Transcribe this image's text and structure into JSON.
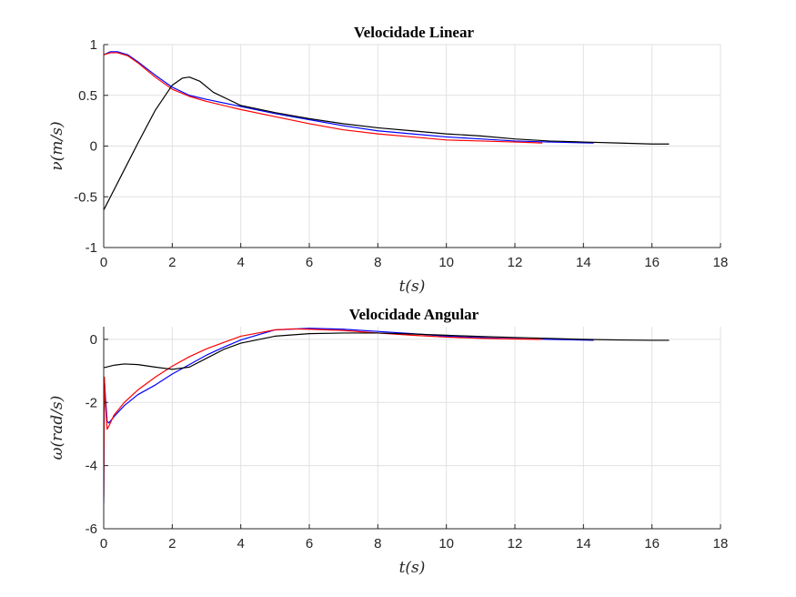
{
  "chart_data": [
    {
      "type": "line",
      "title": "Velocidade Linear",
      "xlabel": "t(s)",
      "ylabel": "ν(m/s)",
      "xlim": [
        0,
        18
      ],
      "ylim": [
        -1,
        1
      ],
      "xticks": [
        0,
        2,
        4,
        6,
        8,
        10,
        12,
        14,
        16,
        18
      ],
      "yticks": [
        -1,
        -0.5,
        0,
        0.5,
        1
      ],
      "grid": true,
      "series": [
        {
          "color": "#0000ff",
          "x": [
            0,
            0.2,
            0.4,
            0.7,
            1.0,
            1.5,
            2.0,
            2.5,
            3.0,
            4.0,
            5.0,
            6.0,
            7.0,
            8.0,
            9.0,
            10.0,
            11.0,
            12.0,
            13.0,
            14.3
          ],
          "y": [
            0.9,
            0.93,
            0.93,
            0.9,
            0.83,
            0.7,
            0.58,
            0.5,
            0.46,
            0.39,
            0.32,
            0.26,
            0.2,
            0.15,
            0.12,
            0.09,
            0.07,
            0.05,
            0.04,
            0.03
          ]
        },
        {
          "color": "#ff0000",
          "x": [
            0,
            0.2,
            0.4,
            0.7,
            1.0,
            1.5,
            2.0,
            2.5,
            3.0,
            4.0,
            5.0,
            6.0,
            7.0,
            8.0,
            9.0,
            10.0,
            11.0,
            12.0,
            12.8
          ],
          "y": [
            0.9,
            0.92,
            0.92,
            0.89,
            0.82,
            0.68,
            0.56,
            0.49,
            0.44,
            0.36,
            0.29,
            0.22,
            0.16,
            0.12,
            0.09,
            0.06,
            0.05,
            0.04,
            0.03
          ]
        },
        {
          "color": "#000000",
          "x": [
            0,
            0.5,
            1.0,
            1.5,
            2.0,
            2.3,
            2.5,
            2.8,
            3.2,
            4.0,
            5.0,
            6.0,
            7.0,
            8.0,
            9.0,
            10.0,
            11.0,
            12.0,
            13.0,
            14.0,
            15.0,
            16.0,
            16.5
          ],
          "y": [
            -0.63,
            -0.3,
            0.03,
            0.35,
            0.6,
            0.67,
            0.68,
            0.64,
            0.53,
            0.4,
            0.33,
            0.27,
            0.22,
            0.18,
            0.15,
            0.12,
            0.1,
            0.07,
            0.05,
            0.04,
            0.03,
            0.02,
            0.02
          ]
        }
      ]
    },
    {
      "type": "line",
      "title": "Velocidade Angular",
      "xlabel": "t(s)",
      "ylabel": "ω(rad/s)",
      "xlim": [
        0,
        18
      ],
      "ylim": [
        -6,
        0.4
      ],
      "xticks": [
        0,
        2,
        4,
        6,
        8,
        10,
        12,
        14,
        16,
        18
      ],
      "yticks": [
        -6,
        -4,
        -2,
        0
      ],
      "grid": true,
      "series": [
        {
          "color": "#0000ff",
          "x": [
            0,
            0.02,
            0.05,
            0.1,
            0.15,
            0.3,
            0.6,
            1.0,
            1.5,
            2.0,
            2.5,
            3.0,
            3.5,
            4.0,
            5.0,
            6.0,
            7.0,
            8.0,
            9.0,
            10.0,
            11.0,
            12.0,
            13.0,
            14.3
          ],
          "y": [
            -5.2,
            -1.3,
            -1.8,
            -2.6,
            -2.65,
            -2.45,
            -2.1,
            -1.75,
            -1.45,
            -1.1,
            -0.8,
            -0.5,
            -0.25,
            -0.02,
            0.3,
            0.35,
            0.32,
            0.25,
            0.18,
            0.1,
            0.05,
            0.02,
            0.0,
            -0.03
          ]
        },
        {
          "color": "#ff0000",
          "x": [
            0,
            0.02,
            0.05,
            0.1,
            0.15,
            0.3,
            0.6,
            1.0,
            1.5,
            2.0,
            2.5,
            3.0,
            3.5,
            4.0,
            5.0,
            5.5,
            6.0,
            7.0,
            8.0,
            9.0,
            10.0,
            11.0,
            12.0,
            12.8
          ],
          "y": [
            -5.0,
            -1.2,
            -2.0,
            -2.85,
            -2.75,
            -2.4,
            -2.0,
            -1.6,
            -1.2,
            -0.85,
            -0.55,
            -0.3,
            -0.1,
            0.1,
            0.3,
            0.33,
            0.32,
            0.28,
            0.2,
            0.13,
            0.07,
            0.03,
            0.01,
            0.0
          ]
        },
        {
          "color": "#000000",
          "x": [
            0,
            0.3,
            0.6,
            1.0,
            1.5,
            2.0,
            2.5,
            3.0,
            3.5,
            4.0,
            5.0,
            6.0,
            7.0,
            8.0,
            9.0,
            10.0,
            11.0,
            12.0,
            13.0,
            14.0,
            15.0,
            16.0,
            16.5
          ],
          "y": [
            -0.9,
            -0.82,
            -0.78,
            -0.8,
            -0.88,
            -0.95,
            -0.88,
            -0.6,
            -0.32,
            -0.12,
            0.1,
            0.18,
            0.2,
            0.2,
            0.17,
            0.13,
            0.09,
            0.06,
            0.03,
            0.0,
            -0.02,
            -0.03,
            -0.03
          ]
        }
      ]
    }
  ]
}
